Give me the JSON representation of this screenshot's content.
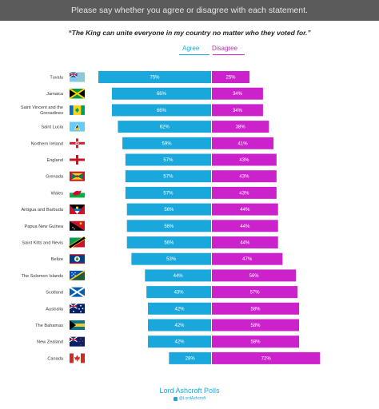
{
  "banner": {
    "text": "Please say whether you agree or disagree with each statement."
  },
  "statement": "“The King can unite everyone in my country no matter who they voted for.”",
  "legend": {
    "agree": "Agree",
    "disagree": "Disagree"
  },
  "footer": {
    "title": "Lord Ashcroft Polls",
    "handle": "@LordAshcroft"
  },
  "colors": {
    "agree": "#1aa7dc",
    "disagree": "#cc22cc",
    "banner": "#5b5b5b"
  },
  "chart_data": {
    "type": "bar",
    "orientation": "horizontal-diverging",
    "categories": [
      "Tuvalu",
      "Jamaica",
      "Saint Vincent and the Grenadines",
      "Saint Lucia",
      "Northern Ireland",
      "England",
      "Grenada",
      "Wales",
      "Antigua and Barbuda",
      "Papua New Guinea",
      "Saint Kitts and Nevis",
      "Belize",
      "The Solomon Islands",
      "Scotland",
      "Australia",
      "The Bahamas",
      "New Zealand",
      "Canada"
    ],
    "flags": [
      "tuvalu-flag",
      "jamaica-flag",
      "saint-vincent-flag",
      "saint-lucia-flag",
      "northern-ireland-flag",
      "england-flag",
      "grenada-flag",
      "wales-flag",
      "antigua-flag",
      "papua-new-guinea-flag",
      "saint-kitts-flag",
      "belize-flag",
      "solomon-islands-flag",
      "scotland-flag",
      "australia-flag",
      "bahamas-flag",
      "new-zealand-flag",
      "canada-flag"
    ],
    "series": [
      {
        "name": "Agree",
        "values": [
          75,
          66,
          66,
          62,
          59,
          57,
          57,
          57,
          56,
          56,
          56,
          53,
          44,
          43,
          42,
          42,
          42,
          28
        ]
      },
      {
        "name": "Disagree",
        "values": [
          25,
          34,
          34,
          38,
          41,
          43,
          43,
          43,
          44,
          44,
          44,
          47,
          56,
          57,
          58,
          58,
          58,
          72
        ]
      }
    ],
    "value_suffix": "%"
  }
}
